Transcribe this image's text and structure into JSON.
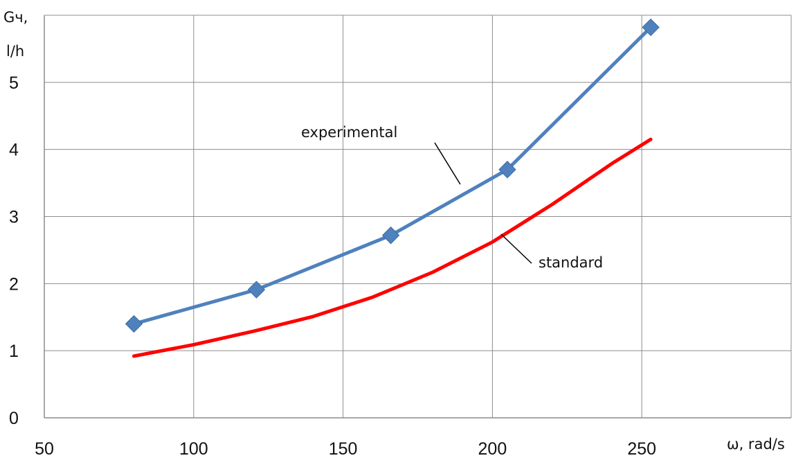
{
  "chart_data": {
    "type": "line",
    "title": "",
    "ylabel_line1": "Gч,",
    "ylabel_line2": "l/h",
    "xlabel": "ω, rad/s",
    "xlim": [
      50,
      300
    ],
    "ylim": [
      0,
      6
    ],
    "x_ticks": [
      50,
      100,
      150,
      200,
      250
    ],
    "y_ticks": [
      0,
      1,
      2,
      3,
      4,
      5
    ],
    "grid": true,
    "legend": "none",
    "series": [
      {
        "name": "experimental",
        "color": "#4F81BD",
        "marker": "diamond",
        "x": [
          80,
          121,
          166,
          205,
          253
        ],
        "y": [
          1.4,
          1.91,
          2.72,
          3.7,
          5.82
        ]
      },
      {
        "name": "standard",
        "color": "#FF0000",
        "marker": "none",
        "x": [
          80,
          100,
          120,
          140,
          160,
          180,
          200,
          220,
          240,
          253
        ],
        "y": [
          0.92,
          1.09,
          1.29,
          1.51,
          1.8,
          2.17,
          2.62,
          3.18,
          3.79,
          4.15
        ]
      }
    ]
  }
}
